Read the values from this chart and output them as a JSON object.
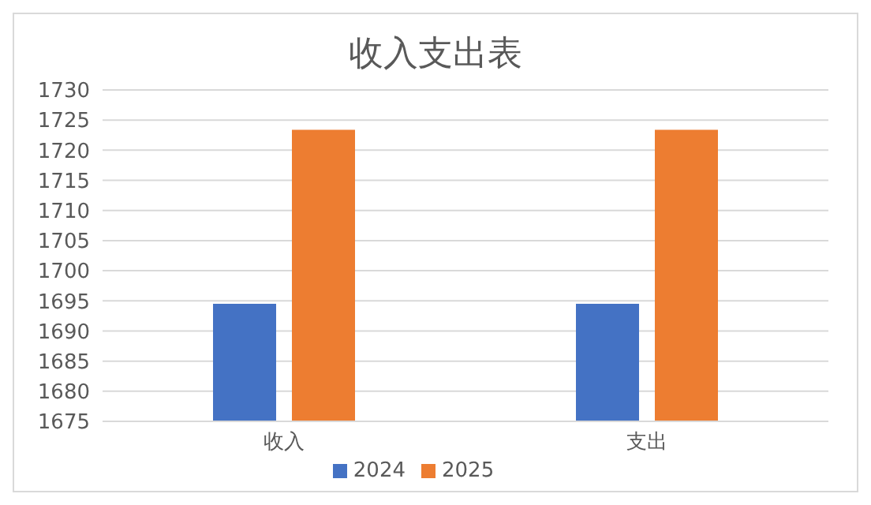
{
  "chart_data": {
    "type": "bar",
    "title": "收入支出表",
    "categories": [
      "收入",
      "支出"
    ],
    "series": [
      {
        "name": "2024",
        "color": "#4472c4",
        "values": [
          1694.5,
          1694.5
        ]
      },
      {
        "name": "2025",
        "color": "#ed7d31",
        "values": [
          1723.4,
          1723.4
        ]
      }
    ],
    "ylim": [
      1675,
      1730
    ],
    "yticks": [
      1675,
      1680,
      1685,
      1690,
      1695,
      1700,
      1705,
      1710,
      1715,
      1720,
      1725,
      1730
    ],
    "grid": "y",
    "legend": "bottom"
  }
}
